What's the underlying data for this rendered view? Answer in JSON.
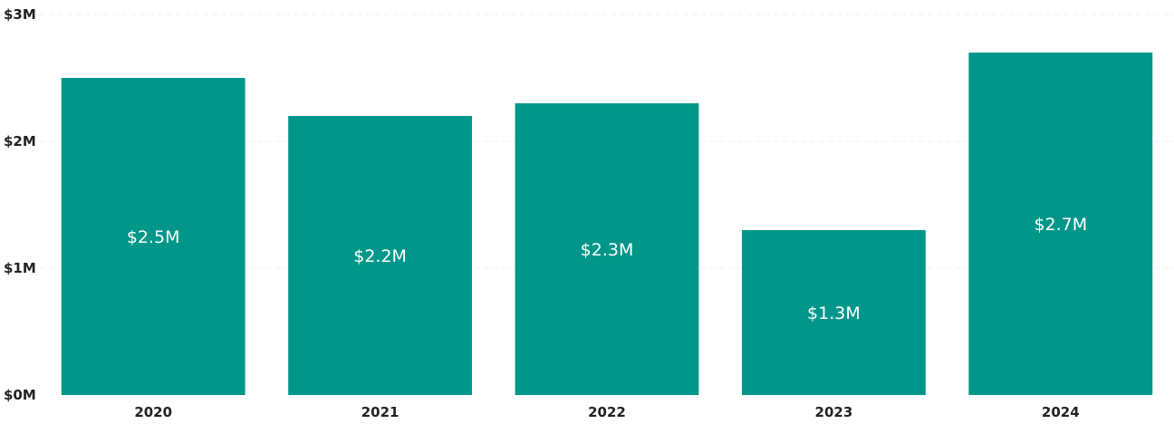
{
  "chart_data": {
    "type": "bar",
    "title": "",
    "xlabel": "",
    "ylabel": "",
    "categories": [
      "2020",
      "2021",
      "2022",
      "2023",
      "2024"
    ],
    "values": [
      2.5,
      2.2,
      2.3,
      1.3,
      2.7
    ],
    "value_labels": [
      "$2.5M",
      "$2.2M",
      "$2.3M",
      "$1.3M",
      "$2.7M"
    ],
    "ylim": [
      0,
      3
    ],
    "yticks": [
      0,
      1,
      2,
      3
    ],
    "ytick_labels": [
      "$0M",
      "$1M",
      "$2M",
      "$3M"
    ],
    "grid": true,
    "bar_color": "#00968a",
    "label_color": "#ffffff"
  }
}
